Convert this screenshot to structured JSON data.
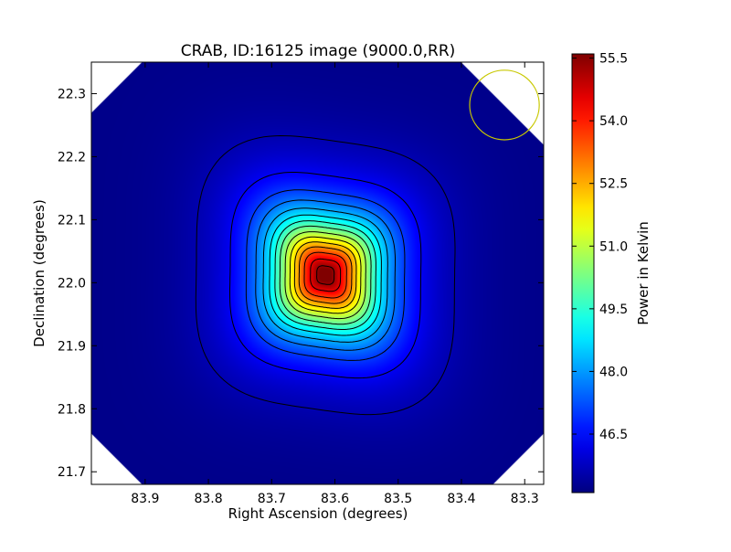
{
  "chart_data": {
    "type": "heatmap",
    "title": "CRAB, ID:16125 image (9000.0,RR)",
    "xlabel": "Right Ascension (degrees)",
    "ylabel": "Declination (degrees)",
    "xlim": [
      83.985,
      83.27
    ],
    "ylim": [
      21.68,
      22.35
    ],
    "x_ticks": [
      83.9,
      83.8,
      83.7,
      83.6,
      83.5,
      83.4,
      83.3
    ],
    "x_tick_labels": [
      "83.9",
      "83.8",
      "83.7",
      "83.6",
      "83.5",
      "83.4",
      "83.3"
    ],
    "y_ticks": [
      21.7,
      21.8,
      21.9,
      22.0,
      22.1,
      22.2,
      22.3
    ],
    "y_tick_labels": [
      "21.7",
      "21.8",
      "21.9",
      "22.0",
      "22.1",
      "22.2",
      "22.3"
    ],
    "colorbar": {
      "label": "Power in Kelvin",
      "range": [
        45.1,
        55.6
      ],
      "ticks": [
        46.5,
        48.0,
        49.5,
        51.0,
        52.5,
        54.0,
        55.5
      ],
      "tick_labels": [
        "46.5",
        "48.0",
        "49.5",
        "51.0",
        "52.5",
        "54.0",
        "55.5"
      ],
      "colormap": "jet"
    },
    "source": {
      "name": "CRAB",
      "peak_ra": 83.615,
      "peak_dec": 22.012,
      "peak_value": 55.5,
      "background_value": 45.2
    },
    "contour_levels": [
      45.6,
      46.3,
      47.0,
      47.6,
      48.2,
      48.8,
      49.4,
      50.0,
      50.7,
      51.4,
      52.1,
      52.8,
      53.6,
      54.5,
      55.3
    ],
    "beam_circle": {
      "ra": 83.332,
      "dec": 22.282,
      "radius_deg": 0.055,
      "color": "#c8c800"
    },
    "colors": {
      "outside_region": "#ffffff",
      "axes_frame": "#000000",
      "contour_line": "#000000"
    }
  }
}
